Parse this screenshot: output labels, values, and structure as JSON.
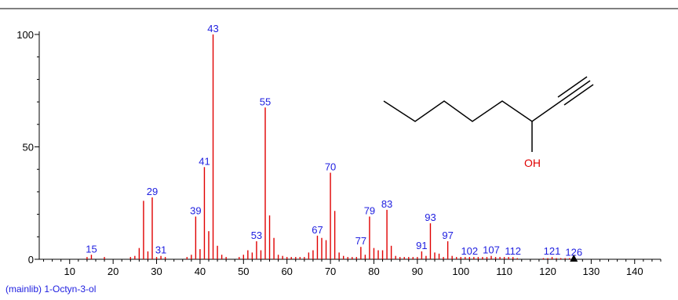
{
  "chart_data": {
    "type": "bar",
    "title": "(mainlib) 1-Octyn-3-ol",
    "xlabel": "",
    "ylabel": "",
    "xlim": [
      3,
      146
    ],
    "ylim": [
      0,
      100
    ],
    "x_ticks": [
      10,
      20,
      30,
      40,
      50,
      60,
      70,
      80,
      90,
      100,
      110,
      120,
      130,
      140
    ],
    "y_ticks": [
      0,
      50,
      100
    ],
    "peaks": [
      {
        "mz": 14,
        "intensity": 1
      },
      {
        "mz": 15,
        "intensity": 2,
        "label": "15"
      },
      {
        "mz": 18,
        "intensity": 1
      },
      {
        "mz": 24,
        "intensity": 1
      },
      {
        "mz": 25,
        "intensity": 1.5
      },
      {
        "mz": 26,
        "intensity": 5
      },
      {
        "mz": 27,
        "intensity": 26
      },
      {
        "mz": 28,
        "intensity": 3.5
      },
      {
        "mz": 29,
        "intensity": 27.5,
        "label": "29"
      },
      {
        "mz": 30,
        "intensity": 1
      },
      {
        "mz": 31,
        "intensity": 1.5,
        "label": "31"
      },
      {
        "mz": 32,
        "intensity": 1
      },
      {
        "mz": 37,
        "intensity": 1
      },
      {
        "mz": 38,
        "intensity": 2
      },
      {
        "mz": 39,
        "intensity": 19,
        "label": "39"
      },
      {
        "mz": 40,
        "intensity": 4.5
      },
      {
        "mz": 41,
        "intensity": 41,
        "label": "41"
      },
      {
        "mz": 42,
        "intensity": 12.5
      },
      {
        "mz": 43,
        "intensity": 100,
        "label": "43"
      },
      {
        "mz": 44,
        "intensity": 6
      },
      {
        "mz": 45,
        "intensity": 2
      },
      {
        "mz": 46,
        "intensity": 1
      },
      {
        "mz": 49,
        "intensity": 1
      },
      {
        "mz": 50,
        "intensity": 2
      },
      {
        "mz": 51,
        "intensity": 4
      },
      {
        "mz": 52,
        "intensity": 3
      },
      {
        "mz": 53,
        "intensity": 8,
        "label": "53"
      },
      {
        "mz": 54,
        "intensity": 4
      },
      {
        "mz": 55,
        "intensity": 67.5,
        "label": "55"
      },
      {
        "mz": 56,
        "intensity": 19.5
      },
      {
        "mz": 57,
        "intensity": 9.5
      },
      {
        "mz": 58,
        "intensity": 2
      },
      {
        "mz": 59,
        "intensity": 1.5
      },
      {
        "mz": 60,
        "intensity": 1
      },
      {
        "mz": 61,
        "intensity": 1
      },
      {
        "mz": 62,
        "intensity": 1
      },
      {
        "mz": 63,
        "intensity": 1
      },
      {
        "mz": 64,
        "intensity": 1
      },
      {
        "mz": 65,
        "intensity": 3
      },
      {
        "mz": 66,
        "intensity": 4
      },
      {
        "mz": 67,
        "intensity": 10.5,
        "label": "67"
      },
      {
        "mz": 68,
        "intensity": 9.5
      },
      {
        "mz": 69,
        "intensity": 8.5
      },
      {
        "mz": 70,
        "intensity": 38.5,
        "label": "70"
      },
      {
        "mz": 71,
        "intensity": 21.5
      },
      {
        "mz": 72,
        "intensity": 3
      },
      {
        "mz": 73,
        "intensity": 1.5
      },
      {
        "mz": 74,
        "intensity": 1
      },
      {
        "mz": 75,
        "intensity": 1
      },
      {
        "mz": 76,
        "intensity": 1
      },
      {
        "mz": 77,
        "intensity": 5.5,
        "label": "77"
      },
      {
        "mz": 78,
        "intensity": 2
      },
      {
        "mz": 79,
        "intensity": 19,
        "label": "79"
      },
      {
        "mz": 80,
        "intensity": 5
      },
      {
        "mz": 81,
        "intensity": 4
      },
      {
        "mz": 82,
        "intensity": 4
      },
      {
        "mz": 83,
        "intensity": 22,
        "label": "83"
      },
      {
        "mz": 84,
        "intensity": 6
      },
      {
        "mz": 85,
        "intensity": 1.5
      },
      {
        "mz": 86,
        "intensity": 1
      },
      {
        "mz": 87,
        "intensity": 1
      },
      {
        "mz": 88,
        "intensity": 1
      },
      {
        "mz": 89,
        "intensity": 1
      },
      {
        "mz": 90,
        "intensity": 1
      },
      {
        "mz": 91,
        "intensity": 3.5,
        "label": "91"
      },
      {
        "mz": 92,
        "intensity": 1.5
      },
      {
        "mz": 93,
        "intensity": 16,
        "label": "93"
      },
      {
        "mz": 94,
        "intensity": 3
      },
      {
        "mz": 95,
        "intensity": 2.5
      },
      {
        "mz": 96,
        "intensity": 1
      },
      {
        "mz": 97,
        "intensity": 8,
        "label": "97"
      },
      {
        "mz": 98,
        "intensity": 1.5
      },
      {
        "mz": 99,
        "intensity": 1
      },
      {
        "mz": 100,
        "intensity": 1
      },
      {
        "mz": 101,
        "intensity": 1
      },
      {
        "mz": 102,
        "intensity": 1,
        "label": "102"
      },
      {
        "mz": 103,
        "intensity": 1
      },
      {
        "mz": 104,
        "intensity": 1
      },
      {
        "mz": 105,
        "intensity": 1
      },
      {
        "mz": 106,
        "intensity": 1
      },
      {
        "mz": 107,
        "intensity": 1.5,
        "label": "107"
      },
      {
        "mz": 108,
        "intensity": 1
      },
      {
        "mz": 109,
        "intensity": 1
      },
      {
        "mz": 110,
        "intensity": 1
      },
      {
        "mz": 111,
        "intensity": 1
      },
      {
        "mz": 112,
        "intensity": 1,
        "label": "112"
      },
      {
        "mz": 113,
        "intensity": 0.5
      },
      {
        "mz": 119,
        "intensity": 0.5
      },
      {
        "mz": 120,
        "intensity": 0.5
      },
      {
        "mz": 121,
        "intensity": 1,
        "label": "121"
      },
      {
        "mz": 122,
        "intensity": 0.5
      },
      {
        "mz": 123,
        "intensity": 0.5
      },
      {
        "mz": 124,
        "intensity": 0.5
      },
      {
        "mz": 125,
        "intensity": 0.5
      },
      {
        "mz": 126,
        "intensity": 0.5,
        "label": "126"
      }
    ],
    "molecular_ion_marker": 126,
    "structure_label": "OH"
  },
  "colors": {
    "peak": "#e00000",
    "peak_label": "#2020e0",
    "axis": "#000000",
    "hydroxyl": "#e00000"
  }
}
